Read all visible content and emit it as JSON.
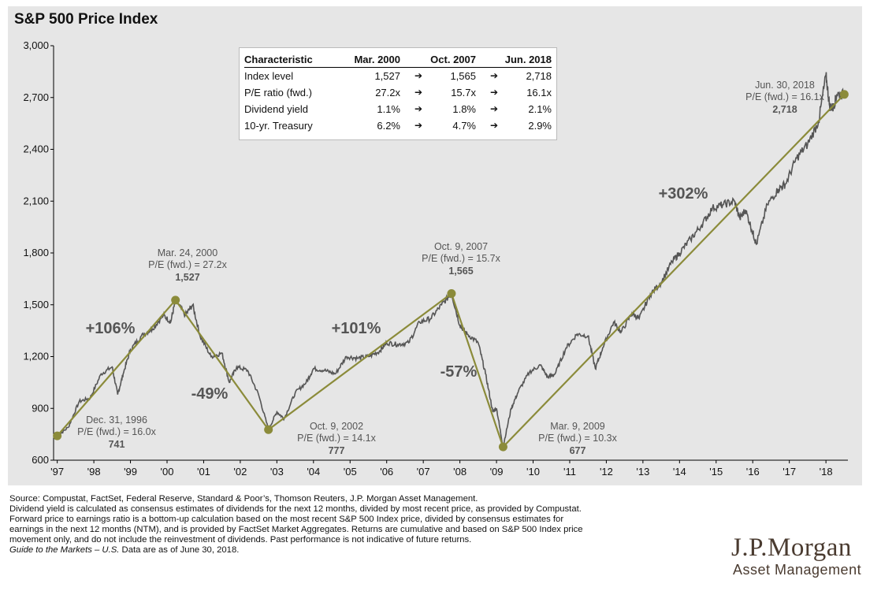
{
  "header": {
    "title": "S&P 500 Price Index"
  },
  "chart_data": {
    "type": "line",
    "title": "S&P 500 Price Index",
    "ylim": [
      600,
      3000
    ],
    "yticks": [
      600,
      900,
      1200,
      1500,
      1800,
      2100,
      2400,
      2700,
      3000
    ],
    "ytick_labels": [
      "600",
      "900",
      "1,200",
      "1,500",
      "1,800",
      "2,100",
      "2,400",
      "2,700",
      "3,000"
    ],
    "xticks": [
      1997,
      1998,
      1999,
      2000,
      2001,
      2002,
      2003,
      2004,
      2005,
      2006,
      2007,
      2008,
      2009,
      2010,
      2011,
      2012,
      2013,
      2014,
      2015,
      2016,
      2017,
      2018
    ],
    "xtick_labels": [
      "'97",
      "'98",
      "'99",
      "'00",
      "'01",
      "'02",
      "'03",
      "'04",
      "'05",
      "'06",
      "'07",
      "'08",
      "'09",
      "'10",
      "'11",
      "'12",
      "'13",
      "'14",
      "'15",
      "'16",
      "'17",
      "'18"
    ],
    "xlim": [
      1996.9,
      2018.6
    ],
    "series": [
      {
        "values_x": [
          1997.0,
          1997.3,
          1997.6,
          1997.9,
          1998.2,
          1998.5,
          1998.65,
          1998.8,
          1999.0,
          1999.3,
          1999.6,
          1999.9,
          2000.1,
          2000.23,
          2000.5,
          2000.7,
          2000.9,
          2001.2,
          2001.5,
          2001.7,
          2001.9,
          2002.2,
          2002.5,
          2002.77,
          2003.0,
          2003.2,
          2003.5,
          2003.8,
          2004.0,
          2004.3,
          2004.6,
          2004.9,
          2005.2,
          2005.5,
          2005.8,
          2006.0,
          2006.3,
          2006.6,
          2006.9,
          2007.2,
          2007.5,
          2007.77,
          2008.0,
          2008.2,
          2008.5,
          2008.7,
          2008.9,
          2009.0,
          2009.18,
          2009.4,
          2009.6,
          2009.9,
          2010.2,
          2010.4,
          2010.6,
          2010.9,
          2011.2,
          2011.5,
          2011.7,
          2011.9,
          2012.2,
          2012.4,
          2012.7,
          2012.9,
          2013.2,
          2013.5,
          2013.8,
          2014.0,
          2014.3,
          2014.6,
          2014.9,
          2015.2,
          2015.5,
          2015.65,
          2015.8,
          2016.0,
          2016.1,
          2016.4,
          2016.7,
          2016.9,
          2017.2,
          2017.5,
          2017.8,
          2018.0,
          2018.1,
          2018.2,
          2018.3,
          2018.5
        ],
        "values": [
          741,
          790,
          940,
          960,
          1100,
          1140,
          980,
          1100,
          1240,
          1320,
          1360,
          1440,
          1400,
          1527,
          1440,
          1500,
          1320,
          1200,
          1220,
          1050,
          1140,
          1120,
          980,
          777,
          880,
          840,
          990,
          1050,
          1130,
          1120,
          1100,
          1200,
          1190,
          1200,
          1230,
          1280,
          1270,
          1280,
          1400,
          1420,
          1500,
          1565,
          1380,
          1330,
          1280,
          1100,
          880,
          900,
          677,
          900,
          1000,
          1110,
          1150,
          1080,
          1100,
          1250,
          1330,
          1320,
          1130,
          1250,
          1400,
          1340,
          1450,
          1420,
          1560,
          1630,
          1750,
          1800,
          1880,
          1960,
          2060,
          2080,
          2100,
          2000,
          2050,
          1920,
          1850,
          2080,
          2170,
          2200,
          2350,
          2430,
          2560,
          2830,
          2650,
          2640,
          2720,
          2718
        ]
      }
    ],
    "trend_points": [
      {
        "x": 1997.0,
        "y": 741
      },
      {
        "x": 2000.23,
        "y": 1527
      },
      {
        "x": 2002.77,
        "y": 777
      },
      {
        "x": 2007.77,
        "y": 1565
      },
      {
        "x": 2009.18,
        "y": 677
      },
      {
        "x": 2018.5,
        "y": 2718
      }
    ],
    "peak_trough_labels": [
      {
        "date": "Dec. 31, 1996",
        "pe": "P/E (fwd.) = 16.0x",
        "value": "741"
      },
      {
        "date": "Mar. 24, 2000",
        "pe": "P/E (fwd.) = 27.2x",
        "value": "1,527"
      },
      {
        "date": "Oct. 9, 2002",
        "pe": "P/E (fwd.) = 14.1x",
        "value": "777"
      },
      {
        "date": "Oct. 9, 2007",
        "pe": "P/E (fwd.) = 15.7x",
        "value": "1,565"
      },
      {
        "date": "Mar. 9, 2009",
        "pe": "P/E (fwd.) = 10.3x",
        "value": "677"
      },
      {
        "date": "Jun. 30, 2018",
        "pe": "P/E (fwd.) = 16.1x",
        "value": "2,718"
      }
    ],
    "returns": [
      "+106%",
      "-49%",
      "+101%",
      "-57%",
      "+302%"
    ],
    "colors": {
      "line": "#555555",
      "trend": "#8b8b3a",
      "panel": "#e6e6e6"
    }
  },
  "table": {
    "headers": [
      "Characteristic",
      "Mar. 2000",
      "Oct. 2007",
      "Jun. 2018"
    ],
    "rows": [
      {
        "label": "Index level",
        "v1": "1,527",
        "v2": "1,565",
        "v3": "2,718"
      },
      {
        "label": "P/E ratio (fwd.)",
        "v1": "27.2x",
        "v2": "15.7x",
        "v3": "16.1x"
      },
      {
        "label": "Dividend yield",
        "v1": "1.1%",
        "v2": "1.8%",
        "v3": "2.1%"
      },
      {
        "label": "10-yr. Treasury",
        "v1": "6.2%",
        "v2": "4.7%",
        "v3": "2.9%"
      }
    ],
    "arrow_glyph": "➔"
  },
  "footer": {
    "line1": "Source: Compustat, FactSet, Federal Reserve, Standard & Poor’s, Thomson Reuters, J.P. Morgan Asset Management.",
    "line2": "Dividend yield is calculated as consensus estimates of dividends for the next 12 months, divided by most recent price, as provided by Compustat.",
    "line3": "Forward price to earnings ratio is a bottom-up calculation based on the most recent S&P 500 Index price, divided by consensus estimates for",
    "line4": "earnings in the next 12 months (NTM), and is provided by FactSet Market Aggregates. Returns are cumulative and based on S&P 500 Index price",
    "line5": "movement only, and do not include the reinvestment of dividends. Past performance is not indicative of future returns.",
    "line6_italic": "Guide to the Markets – U.S.",
    "line6_rest": " Data are as of June 30, 2018."
  },
  "logo": {
    "line1": "J.P.Morgan",
    "line2": "Asset Management"
  }
}
